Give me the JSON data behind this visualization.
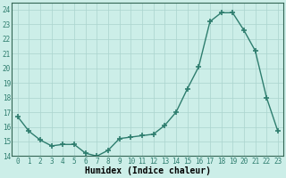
{
  "x": [
    0,
    1,
    2,
    3,
    4,
    5,
    6,
    7,
    8,
    9,
    10,
    11,
    12,
    13,
    14,
    15,
    16,
    17,
    18,
    19,
    20,
    21,
    22,
    23
  ],
  "y": [
    16.7,
    15.7,
    15.1,
    14.7,
    14.8,
    14.8,
    14.2,
    14.0,
    14.4,
    15.2,
    15.3,
    15.4,
    15.5,
    16.1,
    17.0,
    18.6,
    20.1,
    23.2,
    23.8,
    23.8,
    22.6,
    21.2,
    18.0,
    15.7
  ],
  "line_color": "#2e7d6e",
  "marker": "+",
  "markersize": 4,
  "markeredgewidth": 1.2,
  "linewidth": 1.0,
  "xlabel": "Humidex (Indice chaleur)",
  "xlabel_fontsize": 7,
  "xlim": [
    -0.5,
    23.5
  ],
  "ylim": [
    14,
    24.5
  ],
  "yticks": [
    14,
    15,
    16,
    17,
    18,
    19,
    20,
    21,
    22,
    23,
    24
  ],
  "xticks": [
    0,
    1,
    2,
    3,
    4,
    5,
    6,
    7,
    8,
    9,
    10,
    11,
    12,
    13,
    14,
    15,
    16,
    17,
    18,
    19,
    20,
    21,
    22,
    23
  ],
  "bg_color": "#cceee8",
  "grid_color": "#aad4ce",
  "tick_fontsize": 5.5
}
